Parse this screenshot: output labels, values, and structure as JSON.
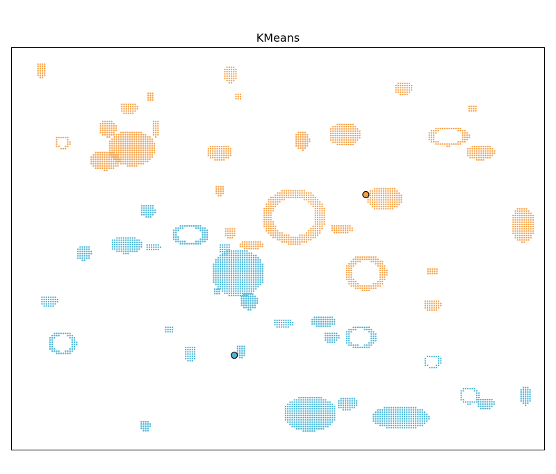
{
  "chart_data": {
    "type": "scatter",
    "title": "KMeans",
    "xlabel": "",
    "ylabel": "",
    "xlim": [
      0,
      1
    ],
    "ylim": [
      0,
      1
    ],
    "axes_visible": false,
    "grid": false,
    "legend": false,
    "colors": {
      "orange": "#f5a14a",
      "blue": "#4ab4d6",
      "center_edge": "#000000"
    },
    "series": [
      {
        "color": "orange",
        "clusters": [
          {
            "x": 0.055,
            "y": 0.945,
            "w": 0.02,
            "h": 0.04,
            "shape": "blob"
          },
          {
            "x": 0.41,
            "y": 0.935,
            "w": 0.028,
            "h": 0.045,
            "shape": "blob"
          },
          {
            "x": 0.425,
            "y": 0.88,
            "w": 0.016,
            "h": 0.02,
            "shape": "blob"
          },
          {
            "x": 0.26,
            "y": 0.88,
            "w": 0.016,
            "h": 0.025,
            "shape": "blob"
          },
          {
            "x": 0.22,
            "y": 0.85,
            "w": 0.035,
            "h": 0.03,
            "shape": "blob"
          },
          {
            "x": 0.18,
            "y": 0.8,
            "w": 0.035,
            "h": 0.045,
            "shape": "blob"
          },
          {
            "x": 0.225,
            "y": 0.75,
            "w": 0.09,
            "h": 0.09,
            "shape": "blob"
          },
          {
            "x": 0.27,
            "y": 0.8,
            "w": 0.016,
            "h": 0.045,
            "shape": "blob"
          },
          {
            "x": 0.095,
            "y": 0.765,
            "w": 0.03,
            "h": 0.035,
            "shape": "ring"
          },
          {
            "x": 0.175,
            "y": 0.72,
            "w": 0.06,
            "h": 0.05,
            "shape": "blob"
          },
          {
            "x": 0.39,
            "y": 0.74,
            "w": 0.05,
            "h": 0.04,
            "shape": "blob"
          },
          {
            "x": 0.545,
            "y": 0.77,
            "w": 0.03,
            "h": 0.05,
            "shape": "blob"
          },
          {
            "x": 0.625,
            "y": 0.785,
            "w": 0.06,
            "h": 0.06,
            "shape": "blob"
          },
          {
            "x": 0.735,
            "y": 0.9,
            "w": 0.035,
            "h": 0.035,
            "shape": "blob"
          },
          {
            "x": 0.865,
            "y": 0.85,
            "w": 0.02,
            "h": 0.02,
            "shape": "blob"
          },
          {
            "x": 0.82,
            "y": 0.78,
            "w": 0.08,
            "h": 0.05,
            "shape": "ring"
          },
          {
            "x": 0.88,
            "y": 0.74,
            "w": 0.055,
            "h": 0.04,
            "shape": "blob"
          },
          {
            "x": 0.39,
            "y": 0.645,
            "w": 0.02,
            "h": 0.03,
            "shape": "blob"
          },
          {
            "x": 0.53,
            "y": 0.58,
            "w": 0.12,
            "h": 0.14,
            "shape": "ring"
          },
          {
            "x": 0.41,
            "y": 0.54,
            "w": 0.025,
            "h": 0.03,
            "shape": "blob"
          },
          {
            "x": 0.45,
            "y": 0.51,
            "w": 0.05,
            "h": 0.025,
            "shape": "blob"
          },
          {
            "x": 0.62,
            "y": 0.55,
            "w": 0.045,
            "h": 0.025,
            "shape": "blob"
          },
          {
            "x": 0.7,
            "y": 0.625,
            "w": 0.07,
            "h": 0.06,
            "shape": "blob"
          },
          {
            "x": 0.96,
            "y": 0.56,
            "w": 0.045,
            "h": 0.09,
            "shape": "blob"
          },
          {
            "x": 0.665,
            "y": 0.44,
            "w": 0.08,
            "h": 0.09,
            "shape": "ring"
          },
          {
            "x": 0.79,
            "y": 0.445,
            "w": 0.025,
            "h": 0.02,
            "shape": "blob"
          },
          {
            "x": 0.79,
            "y": 0.36,
            "w": 0.035,
            "h": 0.03,
            "shape": "blob"
          }
        ]
      },
      {
        "color": "blue",
        "clusters": [
          {
            "x": 0.255,
            "y": 0.595,
            "w": 0.03,
            "h": 0.035,
            "shape": "blob"
          },
          {
            "x": 0.335,
            "y": 0.535,
            "w": 0.07,
            "h": 0.055,
            "shape": "ring"
          },
          {
            "x": 0.215,
            "y": 0.51,
            "w": 0.06,
            "h": 0.045,
            "shape": "blob"
          },
          {
            "x": 0.265,
            "y": 0.505,
            "w": 0.03,
            "h": 0.02,
            "shape": "blob"
          },
          {
            "x": 0.135,
            "y": 0.49,
            "w": 0.03,
            "h": 0.04,
            "shape": "blob"
          },
          {
            "x": 0.425,
            "y": 0.44,
            "w": 0.1,
            "h": 0.12,
            "shape": "blob"
          },
          {
            "x": 0.4,
            "y": 0.5,
            "w": 0.025,
            "h": 0.03,
            "shape": "blob"
          },
          {
            "x": 0.385,
            "y": 0.395,
            "w": 0.016,
            "h": 0.02,
            "shape": "blob"
          },
          {
            "x": 0.445,
            "y": 0.37,
            "w": 0.035,
            "h": 0.045,
            "shape": "blob"
          },
          {
            "x": 0.07,
            "y": 0.37,
            "w": 0.035,
            "h": 0.03,
            "shape": "blob"
          },
          {
            "x": 0.51,
            "y": 0.315,
            "w": 0.04,
            "h": 0.025,
            "shape": "blob"
          },
          {
            "x": 0.585,
            "y": 0.32,
            "w": 0.05,
            "h": 0.03,
            "shape": "blob"
          },
          {
            "x": 0.6,
            "y": 0.28,
            "w": 0.03,
            "h": 0.03,
            "shape": "blob"
          },
          {
            "x": 0.655,
            "y": 0.28,
            "w": 0.06,
            "h": 0.06,
            "shape": "ring"
          },
          {
            "x": 0.295,
            "y": 0.3,
            "w": 0.02,
            "h": 0.02,
            "shape": "blob"
          },
          {
            "x": 0.095,
            "y": 0.265,
            "w": 0.055,
            "h": 0.06,
            "shape": "ring"
          },
          {
            "x": 0.335,
            "y": 0.24,
            "w": 0.025,
            "h": 0.04,
            "shape": "blob"
          },
          {
            "x": 0.43,
            "y": 0.245,
            "w": 0.02,
            "h": 0.035,
            "shape": "blob"
          },
          {
            "x": 0.79,
            "y": 0.22,
            "w": 0.035,
            "h": 0.035,
            "shape": "ring"
          },
          {
            "x": 0.56,
            "y": 0.09,
            "w": 0.1,
            "h": 0.09,
            "shape": "blob"
          },
          {
            "x": 0.63,
            "y": 0.115,
            "w": 0.04,
            "h": 0.035,
            "shape": "blob"
          },
          {
            "x": 0.73,
            "y": 0.08,
            "w": 0.11,
            "h": 0.06,
            "shape": "blob"
          },
          {
            "x": 0.86,
            "y": 0.135,
            "w": 0.04,
            "h": 0.045,
            "shape": "ring"
          },
          {
            "x": 0.89,
            "y": 0.115,
            "w": 0.035,
            "h": 0.03,
            "shape": "blob"
          },
          {
            "x": 0.965,
            "y": 0.135,
            "w": 0.025,
            "h": 0.05,
            "shape": "blob"
          },
          {
            "x": 0.25,
            "y": 0.06,
            "w": 0.022,
            "h": 0.03,
            "shape": "blob"
          }
        ]
      }
    ],
    "centers": [
      {
        "x": 0.665,
        "y": 0.635,
        "color": "orange"
      },
      {
        "x": 0.418,
        "y": 0.235,
        "color": "blue"
      }
    ]
  }
}
